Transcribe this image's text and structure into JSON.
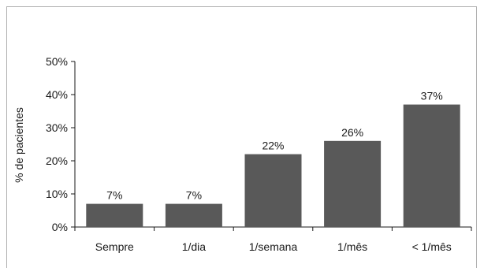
{
  "chart_data": {
    "type": "bar",
    "categories": [
      "Sempre",
      "1/dia",
      "1/semana",
      "1/mês",
      "< 1/mês"
    ],
    "values": [
      7,
      7,
      22,
      26,
      37
    ],
    "value_labels": [
      "7%",
      "7%",
      "22%",
      "26%",
      "37%"
    ],
    "ylabel": "% de pacientes",
    "ylim": [
      0,
      50
    ],
    "yticks": [
      0,
      10,
      20,
      30,
      40,
      50
    ],
    "ytick_labels": [
      "0%",
      "10%",
      "20%",
      "30%",
      "40%",
      "50%"
    ],
    "grid": false,
    "colors": {
      "bar": "#595959",
      "axis": "#1a1a1a"
    }
  }
}
